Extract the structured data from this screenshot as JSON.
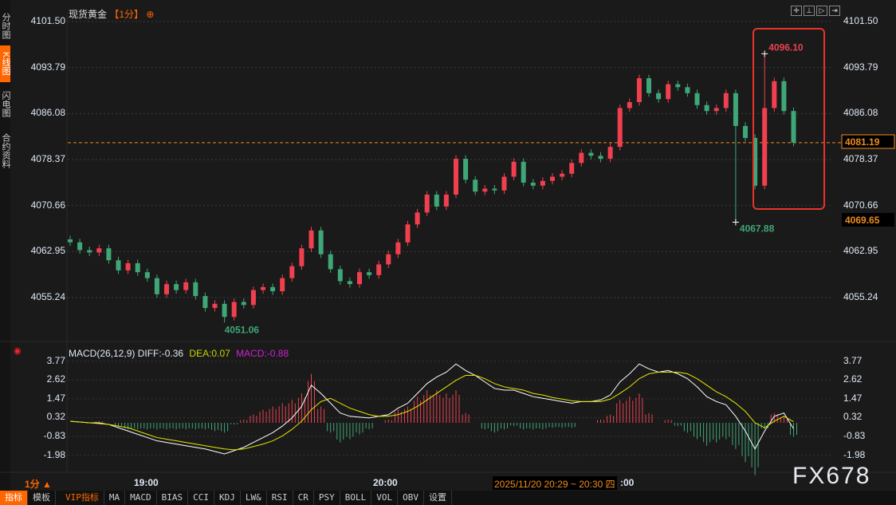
{
  "sidebar": {
    "items": [
      {
        "label": "分时图"
      },
      {
        "label": "K线图",
        "active": true
      },
      {
        "label": "闪电图"
      },
      {
        "label": "合约资料"
      }
    ]
  },
  "header": {
    "symbol": "现货黄金",
    "period": "【1分】",
    "add_icon": "circle-plus-icon"
  },
  "toolbar_icons": [
    "crosshair-icon",
    "zoom-range-icon",
    "play-forward-icon",
    "jump-end-icon"
  ],
  "price_axis": {
    "ticks": [
      "4101.50",
      "4093.79",
      "4086.08",
      "4078.37",
      "4070.66",
      "4062.95",
      "4055.24"
    ],
    "current_price": "4081.19",
    "low_label": "4069.65"
  },
  "annotations": {
    "high": "4096.10",
    "low_spike": "4067.88",
    "period_low": "4051.06"
  },
  "colors": {
    "up": "#f0404f",
    "down": "#3fa777",
    "accent": "#ff6600",
    "box": "#e8332a",
    "diff": "#ffffff",
    "dea": "#e6e600",
    "macd": "#e020e0"
  },
  "chart_data": {
    "type": "candlestick",
    "closes": [
      4064.5,
      4063.2,
      4062.8,
      4063.5,
      4061.5,
      4059.8,
      4061,
      4059.5,
      4058.5,
      4055.8,
      4057.5,
      4056.5,
      4057.8,
      4055.5,
      4053.5,
      4054.2,
      4052,
      4054.5,
      4054,
      4056.5,
      4057,
      4056.3,
      4058.5,
      4060.5,
      4063.5,
      4066.5,
      4062.5,
      4060,
      4058,
      4057.5,
      4059.5,
      4059,
      4060.8,
      4062.5,
      4064.5,
      4067.5,
      4069.5,
      4072.5,
      4070.5,
      4072.5,
      4078.5,
      4075,
      4073,
      4073.5,
      4073.2,
      4075.5,
      4078,
      4074.5,
      4074,
      4074.8,
      4075.5,
      4076,
      4077.8,
      4079.5,
      4079,
      4078.5,
      4080.5,
      4087,
      4088,
      4092,
      4089.5,
      4088.5,
      4091,
      4090.5,
      4089.5,
      4087.5,
      4086.5,
      4087,
      4089.5,
      4084,
      4082,
      4074,
      4087,
      4091.5,
      4086.5,
      4081.2
    ],
    "extremes": {
      "high": {
        "index": 72,
        "value": 4096.1
      },
      "low_spike": {
        "index": 69,
        "value": 4067.88
      },
      "period_low": {
        "index": 16,
        "value": 4051.06
      }
    },
    "ylim": [
      4051,
      4101.5
    ],
    "x_ticks": [
      "19:00",
      "20:00"
    ],
    "macd": {
      "label": "MACD(26,12,9)",
      "diff_label": "DIFF:-0.36",
      "dea_label": "DEA:0.07",
      "macd_label": "MACD:-0.88",
      "ticks": [
        "3.77",
        "2.62",
        "1.47",
        "0.32",
        "-0.83",
        "-1.98"
      ],
      "diff": [
        0.1,
        0.05,
        0,
        0,
        -0.1,
        -0.3,
        -0.5,
        -0.7,
        -0.9,
        -1.1,
        -1.2,
        -1.3,
        -1.4,
        -1.5,
        -1.6,
        -1.75,
        -1.9,
        -1.7,
        -1.5,
        -1.2,
        -0.9,
        -0.6,
        -0.2,
        0.3,
        1.0,
        2.3,
        1.8,
        1.2,
        0.6,
        0.4,
        0.35,
        0.3,
        0.4,
        0.5,
        0.9,
        1.2,
        1.8,
        2.4,
        2.8,
        3.1,
        3.6,
        3.2,
        2.9,
        2.5,
        2.1,
        2.0,
        2.0,
        1.8,
        1.6,
        1.5,
        1.4,
        1.3,
        1.2,
        1.3,
        1.3,
        1.4,
        1.7,
        2.5,
        3.0,
        3.6,
        3.3,
        3.1,
        3.2,
        3.0,
        2.7,
        2.2,
        1.6,
        1.3,
        1.1,
        0.4,
        -0.5,
        -1.6,
        -0.5,
        0.4,
        0.6,
        -0.36
      ],
      "dea": [
        0.1,
        0.05,
        0,
        -0.05,
        -0.1,
        -0.2,
        -0.3,
        -0.5,
        -0.7,
        -0.9,
        -1.0,
        -1.1,
        -1.2,
        -1.3,
        -1.4,
        -1.5,
        -1.6,
        -1.65,
        -1.6,
        -1.45,
        -1.3,
        -1.1,
        -0.8,
        -0.4,
        0.1,
        0.8,
        1.3,
        1.5,
        1.2,
        0.9,
        0.7,
        0.5,
        0.4,
        0.4,
        0.5,
        0.7,
        1.0,
        1.4,
        1.8,
        2.2,
        2.6,
        2.9,
        2.9,
        2.7,
        2.4,
        2.2,
        2.1,
        2.0,
        1.8,
        1.7,
        1.55,
        1.45,
        1.35,
        1.3,
        1.3,
        1.3,
        1.45,
        1.8,
        2.2,
        2.7,
        3.0,
        3.1,
        3.1,
        3.1,
        3.0,
        2.7,
        2.3,
        1.9,
        1.6,
        1.2,
        0.7,
        0.0,
        -0.3,
        0.1,
        0.4,
        0.07
      ]
    }
  },
  "time_axis": {
    "period": "1分 ▲",
    "labels": [
      "19:00",
      "20:00"
    ],
    "tooltip": "2025/11/20 20:29 ~ 20:30 四",
    "tooltip_suffix": ":00"
  },
  "bottom_tabs": [
    "指标",
    "模板",
    "VIP指标",
    "MA",
    "MACD",
    "BIAS",
    "CCI",
    "KDJ",
    "LW&",
    "RSI",
    "CR",
    "PSY",
    "BOLL",
    "VOL",
    "OBV",
    "设置"
  ],
  "watermark": "FX678"
}
